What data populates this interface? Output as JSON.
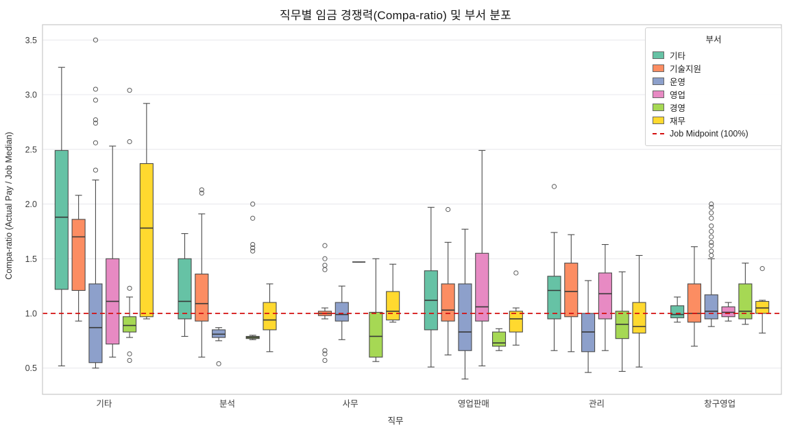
{
  "chart_data": {
    "type": "boxplot",
    "title": "직무별 임금 경쟁력(Compa-ratio) 및 부서 분포",
    "xlabel": "직무",
    "ylabel": "Compa-ratio (Actual Pay / Job Median)",
    "legend_title": "부서",
    "categories": [
      "기타",
      "분석",
      "사무",
      "영업판매",
      "관리",
      "창구영업"
    ],
    "yticks": [
      0.5,
      1.0,
      1.5,
      2.0,
      2.5,
      3.0,
      3.5
    ],
    "ylim": [
      0.26,
      3.64
    ],
    "grid": true,
    "legend_position": "upper right",
    "reference_line": {
      "value": 1.0,
      "label": "Job Midpoint (100%)",
      "color": "#d40f0f",
      "style": "dashed"
    },
    "series": [
      {
        "name": "기타",
        "color": "#66c2a5",
        "boxes": [
          {
            "lo": 0.52,
            "q1": 1.22,
            "med": 1.88,
            "q3": 2.49,
            "hi": 3.25,
            "outliers": []
          },
          {
            "lo": 0.79,
            "q1": 0.95,
            "med": 1.11,
            "q3": 1.5,
            "hi": 1.73,
            "outliers": []
          },
          null,
          {
            "lo": 0.51,
            "q1": 0.85,
            "med": 1.12,
            "q3": 1.39,
            "hi": 1.97,
            "outliers": []
          },
          {
            "lo": 0.66,
            "q1": 0.95,
            "med": 1.21,
            "q3": 1.34,
            "hi": 1.74,
            "outliers": [
              2.16
            ]
          },
          {
            "lo": 0.92,
            "q1": 0.96,
            "med": 0.99,
            "q3": 1.07,
            "hi": 1.15,
            "outliers": []
          }
        ]
      },
      {
        "name": "기술지원",
        "color": "#fc8d62",
        "boxes": [
          {
            "lo": 0.93,
            "q1": 1.21,
            "med": 1.7,
            "q3": 1.86,
            "hi": 2.08,
            "outliers": []
          },
          {
            "lo": 0.6,
            "q1": 0.93,
            "med": 1.09,
            "q3": 1.36,
            "hi": 1.91,
            "outliers": [
              2.1,
              2.13
            ]
          },
          {
            "lo": 0.95,
            "q1": 0.98,
            "med": 1.0,
            "q3": 1.02,
            "hi": 1.05,
            "outliers": [
              1.62,
              1.5,
              1.44,
              1.4,
              0.66,
              0.63,
              0.57
            ]
          },
          {
            "lo": 0.62,
            "q1": 0.93,
            "med": 1.03,
            "q3": 1.27,
            "hi": 1.65,
            "outliers": [
              1.95
            ]
          },
          {
            "lo": 0.65,
            "q1": 0.97,
            "med": 1.2,
            "q3": 1.46,
            "hi": 1.72,
            "outliers": []
          },
          {
            "lo": 0.7,
            "q1": 0.92,
            "med": 1.0,
            "q3": 1.27,
            "hi": 1.61,
            "outliers": []
          }
        ]
      },
      {
        "name": "운영",
        "color": "#8da0cb",
        "boxes": [
          {
            "lo": 0.5,
            "q1": 0.55,
            "med": 0.87,
            "q3": 1.27,
            "hi": 2.22,
            "outliers": [
              2.31,
              2.56,
              2.74,
              2.77,
              2.95,
              3.05,
              3.5
            ]
          },
          {
            "lo": 0.75,
            "q1": 0.78,
            "med": 0.81,
            "q3": 0.85,
            "hi": 0.87,
            "outliers": [
              0.54
            ]
          },
          {
            "lo": 0.76,
            "q1": 0.93,
            "med": 0.99,
            "q3": 1.1,
            "hi": 1.25,
            "outliers": []
          },
          {
            "lo": 0.4,
            "q1": 0.66,
            "med": 0.83,
            "q3": 1.27,
            "hi": 1.77,
            "outliers": []
          },
          {
            "lo": 0.46,
            "q1": 0.65,
            "med": 0.83,
            "q3": 1.0,
            "hi": 1.3,
            "outliers": []
          },
          {
            "lo": 0.88,
            "q1": 0.95,
            "med": 1.02,
            "q3": 1.17,
            "hi": 1.5,
            "outliers": [
              1.53,
              1.57,
              1.62,
              1.65,
              1.7,
              1.75,
              1.8,
              1.87,
              1.92,
              1.97,
              2.0
            ]
          }
        ]
      },
      {
        "name": "영업",
        "color": "#e78ac3",
        "boxes": [
          {
            "lo": 0.6,
            "q1": 0.72,
            "med": 1.11,
            "q3": 1.5,
            "hi": 2.53,
            "outliers": []
          },
          null,
          {
            "lo": 1.47,
            "q1": 1.47,
            "med": 1.47,
            "q3": 1.47,
            "hi": 1.47,
            "outliers": []
          },
          {
            "lo": 0.52,
            "q1": 0.93,
            "med": 1.06,
            "q3": 1.55,
            "hi": 2.49,
            "outliers": []
          },
          {
            "lo": 0.66,
            "q1": 0.95,
            "med": 1.18,
            "q3": 1.37,
            "hi": 1.63,
            "outliers": []
          },
          {
            "lo": 0.93,
            "q1": 0.97,
            "med": 1.01,
            "q3": 1.06,
            "hi": 1.1,
            "outliers": []
          }
        ]
      },
      {
        "name": "경영",
        "color": "#a6d854",
        "boxes": [
          {
            "lo": 0.78,
            "q1": 0.83,
            "med": 0.89,
            "q3": 0.97,
            "hi": 1.15,
            "outliers": [
              0.57,
              0.63,
              1.23,
              2.57,
              3.04
            ]
          },
          {
            "lo": 0.76,
            "q1": 0.77,
            "med": 0.78,
            "q3": 0.79,
            "hi": 0.8,
            "outliers": [
              1.57,
              1.6,
              1.63,
              1.87,
              2.0
            ]
          },
          {
            "lo": 0.56,
            "q1": 0.6,
            "med": 0.79,
            "q3": 1.01,
            "hi": 1.5,
            "outliers": []
          },
          {
            "lo": 0.66,
            "q1": 0.7,
            "med": 0.73,
            "q3": 0.83,
            "hi": 0.86,
            "outliers": []
          },
          {
            "lo": 0.47,
            "q1": 0.77,
            "med": 0.9,
            "q3": 1.02,
            "hi": 1.38,
            "outliers": []
          },
          {
            "lo": 0.9,
            "q1": 0.95,
            "med": 1.02,
            "q3": 1.27,
            "hi": 1.46,
            "outliers": []
          }
        ]
      },
      {
        "name": "재무",
        "color": "#ffd92f",
        "boxes": [
          {
            "lo": 0.95,
            "q1": 0.97,
            "med": 1.78,
            "q3": 2.37,
            "hi": 2.92,
            "outliers": []
          },
          {
            "lo": 0.65,
            "q1": 0.85,
            "med": 0.94,
            "q3": 1.1,
            "hi": 1.27,
            "outliers": []
          },
          {
            "lo": 0.92,
            "q1": 0.94,
            "med": 1.02,
            "q3": 1.2,
            "hi": 1.45,
            "outliers": []
          },
          {
            "lo": 0.71,
            "q1": 0.83,
            "med": 0.95,
            "q3": 1.02,
            "hi": 1.05,
            "outliers": [
              1.37
            ]
          },
          {
            "lo": 0.51,
            "q1": 0.82,
            "med": 0.88,
            "q3": 1.1,
            "hi": 1.53,
            "outliers": []
          },
          {
            "lo": 0.82,
            "q1": 1.0,
            "med": 1.05,
            "q3": 1.11,
            "hi": 1.12,
            "outliers": [
              1.41
            ]
          }
        ]
      }
    ]
  }
}
